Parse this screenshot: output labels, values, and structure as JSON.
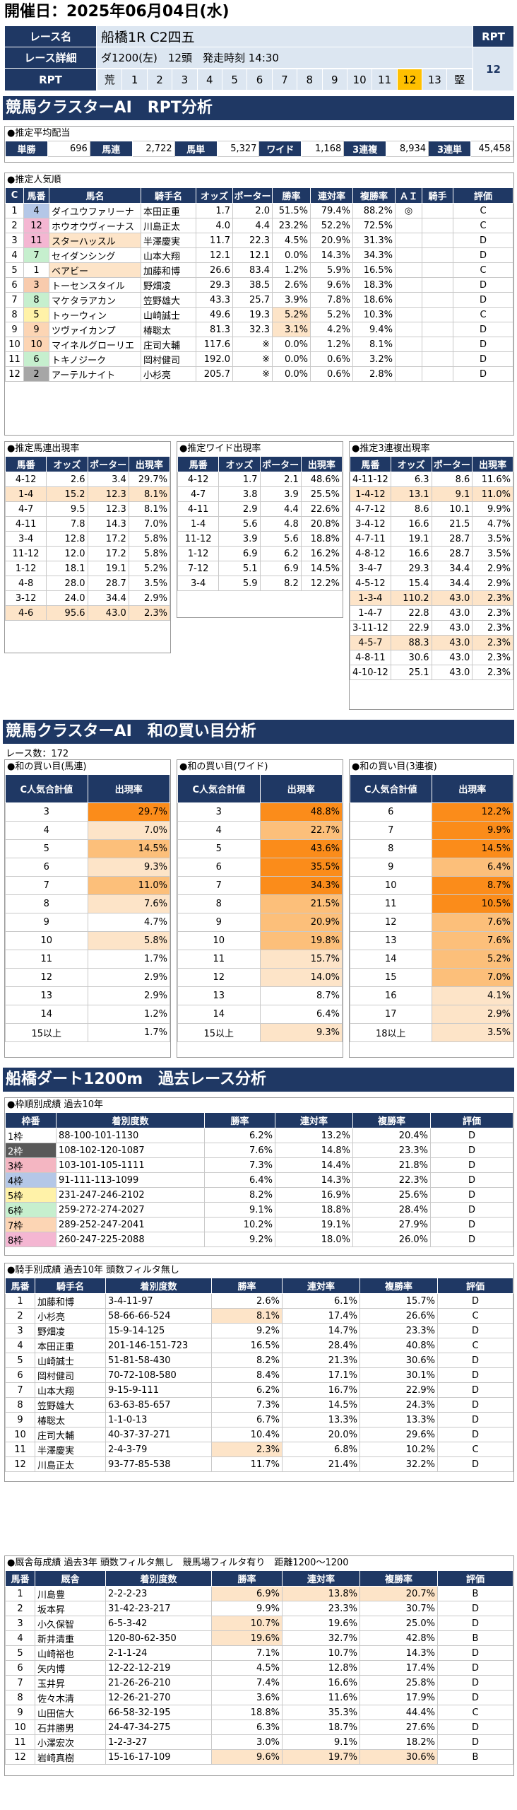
{
  "header": {
    "date": "開催日：2025年06月04日(水)"
  },
  "race": {
    "name_label": "レース名",
    "name": "船橋1R C2四五",
    "detail_label": "レース詳細",
    "detail": "ダ1200(左)　12頭　発走時刻 14:30",
    "rpt_label": "RPT",
    "rpt_value": "12",
    "rpt_scale": [
      "荒",
      "1",
      "2",
      "3",
      "4",
      "5",
      "6",
      "7",
      "8",
      "9",
      "10",
      "11",
      "12",
      "13",
      "堅"
    ],
    "rpt_selected": 12
  },
  "sec1": {
    "title": "競馬クラスターAI　RPT分析"
  },
  "payout": {
    "title": "●推定平均配当",
    "items": [
      {
        "label": "単勝",
        "value": "696"
      },
      {
        "label": "馬連",
        "value": "2,722"
      },
      {
        "label": "馬単",
        "value": "5,327"
      },
      {
        "label": "ワイド",
        "value": "1,168"
      },
      {
        "label": "3連複",
        "value": "8,934"
      },
      {
        "label": "3連単",
        "value": "45,458"
      }
    ]
  },
  "popular": {
    "title": "●推定人気順",
    "headers": [
      "C",
      "馬番",
      "馬名",
      "騎手名",
      "オッズ",
      "ポーター",
      "勝率",
      "連対率",
      "複勝率",
      "ＡＩ",
      "騎手",
      "評価"
    ],
    "rows": [
      [
        "1",
        "4",
        "ダイユウファリーナ",
        "本田正重",
        "1.7",
        "2.0",
        "51.5%",
        "79.4%",
        "88.2%",
        "◎",
        "",
        "C"
      ],
      [
        "2",
        "12",
        "ホウオウヴィーナス",
        "川島正太",
        "4.0",
        "4.4",
        "23.2%",
        "52.2%",
        "72.5%",
        "",
        "",
        "C"
      ],
      [
        "3",
        "11",
        "スターハッスル",
        "半澤慶実",
        "11.7",
        "22.3",
        "4.5%",
        "20.9%",
        "31.3%",
        "",
        "",
        "D"
      ],
      [
        "4",
        "7",
        "セイダンシング",
        "山本大翔",
        "12.1",
        "12.1",
        "0.0%",
        "14.3%",
        "34.3%",
        "",
        "",
        "D"
      ],
      [
        "5",
        "1",
        "ベアビー",
        "加藤和博",
        "26.6",
        "83.4",
        "1.2%",
        "5.9%",
        "16.5%",
        "",
        "",
        "C"
      ],
      [
        "6",
        "3",
        "トーセンスタイル",
        "野畑凌",
        "29.3",
        "38.5",
        "2.6%",
        "9.6%",
        "18.3%",
        "",
        "",
        "D"
      ],
      [
        "7",
        "8",
        "マケタラアカン",
        "笠野雄大",
        "43.3",
        "25.7",
        "3.9%",
        "7.8%",
        "18.6%",
        "",
        "",
        "D"
      ],
      [
        "8",
        "5",
        "トゥーウィン",
        "山崎誠士",
        "49.6",
        "19.3",
        "5.2%",
        "5.2%",
        "10.3%",
        "",
        "",
        "C"
      ],
      [
        "9",
        "9",
        "ツヴァイカンプ",
        "椿聡太",
        "81.3",
        "32.3",
        "3.1%",
        "4.2%",
        "9.4%",
        "",
        "",
        "D"
      ],
      [
        "10",
        "10",
        "マイネルグローリエ",
        "庄司大輔",
        "117.6",
        "※",
        "0.0%",
        "1.2%",
        "8.1%",
        "",
        "",
        "D"
      ],
      [
        "11",
        "6",
        "トキノジーク",
        "岡村健司",
        "192.0",
        "※",
        "0.0%",
        "0.6%",
        "3.2%",
        "",
        "",
        "D"
      ],
      [
        "12",
        "2",
        "アーテルナイト",
        "小杉亮",
        "205.7",
        "※",
        "0.0%",
        "0.6%",
        "2.8%",
        "",
        "",
        "D"
      ]
    ]
  },
  "umaren": {
    "title": "●推定馬連出現率",
    "headers": [
      "馬番",
      "オッズ",
      "ポーター",
      "出現率"
    ],
    "rows": [
      [
        "4-12",
        "2.6",
        "3.4",
        "29.7%"
      ],
      [
        "1-4",
        "15.2",
        "12.3",
        "8.1%"
      ],
      [
        "4-7",
        "9.5",
        "12.3",
        "8.1%"
      ],
      [
        "4-11",
        "7.8",
        "14.3",
        "7.0%"
      ],
      [
        "3-4",
        "12.8",
        "17.2",
        "5.8%"
      ],
      [
        "11-12",
        "12.0",
        "17.2",
        "5.8%"
      ],
      [
        "1-12",
        "18.1",
        "19.1",
        "5.2%"
      ],
      [
        "4-8",
        "28.0",
        "28.7",
        "3.5%"
      ],
      [
        "3-12",
        "24.0",
        "34.4",
        "2.9%"
      ],
      [
        "4-6",
        "95.6",
        "43.0",
        "2.3%"
      ]
    ]
  },
  "wide": {
    "title": "●推定ワイド出現率",
    "headers": [
      "馬番",
      "オッズ",
      "ポーター",
      "出現率"
    ],
    "rows": [
      [
        "4-12",
        "1.7",
        "2.1",
        "48.6%"
      ],
      [
        "4-7",
        "3.8",
        "3.9",
        "25.5%"
      ],
      [
        "4-11",
        "2.9",
        "4.4",
        "22.6%"
      ],
      [
        "1-4",
        "5.6",
        "4.8",
        "20.8%"
      ],
      [
        "11-12",
        "3.9",
        "5.6",
        "18.8%"
      ],
      [
        "1-12",
        "6.9",
        "6.2",
        "16.2%"
      ],
      [
        "7-12",
        "5.1",
        "6.9",
        "14.5%"
      ],
      [
        "3-4",
        "5.9",
        "8.2",
        "12.2%"
      ]
    ]
  },
  "sanrenpuku": {
    "title": "●推定3連複出現率",
    "headers": [
      "馬番",
      "オッズ",
      "ポーター",
      "出現率"
    ],
    "rows": [
      [
        "4-11-12",
        "6.3",
        "8.6",
        "11.6%"
      ],
      [
        "1-4-12",
        "13.1",
        "9.1",
        "11.0%"
      ],
      [
        "4-7-12",
        "8.6",
        "10.1",
        "9.9%"
      ],
      [
        "3-4-12",
        "16.6",
        "21.5",
        "4.7%"
      ],
      [
        "4-7-11",
        "19.1",
        "28.7",
        "3.5%"
      ],
      [
        "4-8-12",
        "16.6",
        "28.7",
        "3.5%"
      ],
      [
        "3-4-7",
        "29.3",
        "34.4",
        "2.9%"
      ],
      [
        "4-5-12",
        "15.4",
        "34.4",
        "2.9%"
      ],
      [
        "1-3-4",
        "110.2",
        "43.0",
        "2.3%"
      ],
      [
        "1-4-7",
        "22.8",
        "43.0",
        "2.3%"
      ],
      [
        "3-11-12",
        "22.9",
        "43.0",
        "2.3%"
      ],
      [
        "4-5-7",
        "88.3",
        "43.0",
        "2.3%"
      ],
      [
        "4-8-11",
        "30.6",
        "43.0",
        "2.3%"
      ],
      [
        "4-10-12",
        "25.1",
        "43.0",
        "2.3%"
      ]
    ]
  },
  "sec2": {
    "title": "競馬クラスターAI　和の買い目分析",
    "race_count": "レース数：172"
  },
  "wa_umaren": {
    "title": "●和の買い目(馬連)",
    "headers": [
      "C人気合計値",
      "出現率"
    ],
    "rows": [
      [
        "3",
        "29.7%"
      ],
      [
        "4",
        "7.0%"
      ],
      [
        "5",
        "14.5%"
      ],
      [
        "6",
        "9.3%"
      ],
      [
        "7",
        "11.0%"
      ],
      [
        "8",
        "7.6%"
      ],
      [
        "9",
        "4.7%"
      ],
      [
        "10",
        "5.8%"
      ],
      [
        "11",
        "1.7%"
      ],
      [
        "12",
        "2.9%"
      ],
      [
        "13",
        "2.9%"
      ],
      [
        "14",
        "1.2%"
      ],
      [
        "15以上",
        "1.7%"
      ]
    ]
  },
  "wa_wide": {
    "title": "●和の買い目(ワイド)",
    "headers": [
      "C人気合計値",
      "出現率"
    ],
    "rows": [
      [
        "3",
        "48.8%"
      ],
      [
        "4",
        "22.7%"
      ],
      [
        "5",
        "43.6%"
      ],
      [
        "6",
        "35.5%"
      ],
      [
        "7",
        "34.3%"
      ],
      [
        "8",
        "21.5%"
      ],
      [
        "9",
        "20.9%"
      ],
      [
        "10",
        "19.8%"
      ],
      [
        "11",
        "15.7%"
      ],
      [
        "12",
        "14.0%"
      ],
      [
        "13",
        "8.7%"
      ],
      [
        "14",
        "6.4%"
      ],
      [
        "15以上",
        "9.3%"
      ]
    ]
  },
  "wa_3renpuku": {
    "title": "●和の買い目(3連複)",
    "headers": [
      "C人気合計値",
      "出現率"
    ],
    "rows": [
      [
        "6",
        "12.2%"
      ],
      [
        "7",
        "9.9%"
      ],
      [
        "8",
        "14.5%"
      ],
      [
        "9",
        "6.4%"
      ],
      [
        "10",
        "8.7%"
      ],
      [
        "11",
        "10.5%"
      ],
      [
        "12",
        "7.6%"
      ],
      [
        "13",
        "7.6%"
      ],
      [
        "14",
        "5.2%"
      ],
      [
        "15",
        "7.0%"
      ],
      [
        "16",
        "4.1%"
      ],
      [
        "17",
        "2.9%"
      ],
      [
        "18以上",
        "3.5%"
      ]
    ]
  },
  "sec3": {
    "title": "船橋ダート1200m　過去レース分析"
  },
  "waku": {
    "title": "●枠順別成績 過去10年",
    "headers": [
      "枠番",
      "着別度数",
      "勝率",
      "連対率",
      "複勝率",
      "評価"
    ],
    "rows": [
      [
        "1枠",
        "88-100-101-1130",
        "6.2%",
        "13.2%",
        "20.4%",
        "D"
      ],
      [
        "2枠",
        "108-102-120-1087",
        "7.6%",
        "14.8%",
        "23.3%",
        "D"
      ],
      [
        "3枠",
        "103-101-105-1111",
        "7.3%",
        "14.4%",
        "21.8%",
        "D"
      ],
      [
        "4枠",
        "91-111-113-1099",
        "6.4%",
        "14.3%",
        "22.3%",
        "D"
      ],
      [
        "5枠",
        "231-247-246-2102",
        "8.2%",
        "16.9%",
        "25.6%",
        "D"
      ],
      [
        "6枠",
        "259-272-274-2027",
        "9.1%",
        "18.8%",
        "28.4%",
        "D"
      ],
      [
        "7枠",
        "289-252-247-2041",
        "10.2%",
        "19.1%",
        "27.9%",
        "D"
      ],
      [
        "8枠",
        "260-247-225-2088",
        "9.2%",
        "18.0%",
        "26.0%",
        "D"
      ]
    ]
  },
  "jockey": {
    "title": "●騎手別成績 過去10年 頭数フィルタ無し",
    "headers": [
      "馬番",
      "騎手名",
      "着別度数",
      "勝率",
      "連対率",
      "複勝率",
      "評価"
    ],
    "rows": [
      [
        "1",
        "加藤和博",
        "3-4-11-97",
        "2.6%",
        "6.1%",
        "15.7%",
        "D"
      ],
      [
        "2",
        "小杉亮",
        "58-66-66-524",
        "8.1%",
        "17.4%",
        "26.6%",
        "C"
      ],
      [
        "3",
        "野畑凌",
        "15-9-14-125",
        "9.2%",
        "14.7%",
        "23.3%",
        "D"
      ],
      [
        "4",
        "本田正重",
        "201-146-151-723",
        "16.5%",
        "28.4%",
        "40.8%",
        "C"
      ],
      [
        "5",
        "山崎誠士",
        "51-81-58-430",
        "8.2%",
        "21.3%",
        "30.6%",
        "D"
      ],
      [
        "6",
        "岡村健司",
        "70-72-108-580",
        "8.4%",
        "17.1%",
        "30.1%",
        "D"
      ],
      [
        "7",
        "山本大翔",
        "9-15-9-111",
        "6.2%",
        "16.7%",
        "22.9%",
        "D"
      ],
      [
        "8",
        "笠野雄大",
        "63-63-85-657",
        "7.3%",
        "14.5%",
        "24.3%",
        "D"
      ],
      [
        "9",
        "椿聡太",
        "1-1-0-13",
        "6.7%",
        "13.3%",
        "13.3%",
        "D"
      ],
      [
        "10",
        "庄司大輔",
        "40-37-37-271",
        "10.4%",
        "20.0%",
        "29.6%",
        "D"
      ],
      [
        "11",
        "半澤慶実",
        "2-4-3-79",
        "2.3%",
        "6.8%",
        "10.2%",
        "C"
      ],
      [
        "12",
        "川島正太",
        "93-77-85-538",
        "11.7%",
        "21.4%",
        "32.2%",
        "D"
      ]
    ]
  },
  "trainer": {
    "title": "●厩舎毎成績 過去3年 頭数フィルタ無し　競馬場フィルタ有り　距離1200～1200",
    "headers": [
      "馬番",
      "厩舎",
      "着別度数",
      "勝率",
      "連対率",
      "複勝率",
      "評価"
    ],
    "rows": [
      [
        "1",
        "川島豊",
        "2-2-2-23",
        "6.9%",
        "13.8%",
        "20.7%",
        "B"
      ],
      [
        "2",
        "坂本昇",
        "31-42-23-217",
        "9.9%",
        "23.3%",
        "30.7%",
        "D"
      ],
      [
        "3",
        "小久保智",
        "6-5-3-42",
        "10.7%",
        "19.6%",
        "25.0%",
        "D"
      ],
      [
        "4",
        "新井清重",
        "120-80-62-350",
        "19.6%",
        "32.7%",
        "42.8%",
        "B"
      ],
      [
        "5",
        "山崎裕也",
        "2-1-1-24",
        "7.1%",
        "10.7%",
        "14.3%",
        "D"
      ],
      [
        "6",
        "矢内博",
        "12-22-12-219",
        "4.5%",
        "12.8%",
        "17.4%",
        "D"
      ],
      [
        "7",
        "玉井昇",
        "21-26-26-210",
        "7.4%",
        "16.6%",
        "25.8%",
        "D"
      ],
      [
        "8",
        "佐々木清",
        "12-26-21-270",
        "3.6%",
        "11.6%",
        "17.9%",
        "D"
      ],
      [
        "9",
        "山田信大",
        "66-58-32-195",
        "18.8%",
        "35.3%",
        "44.4%",
        "C"
      ],
      [
        "10",
        "石井勝男",
        "24-47-34-275",
        "6.3%",
        "18.7%",
        "27.6%",
        "D"
      ],
      [
        "11",
        "小澤宏次",
        "1-2-3-27",
        "3.0%",
        "9.1%",
        "18.2%",
        "D"
      ],
      [
        "12",
        "岩崎真樹",
        "15-16-17-109",
        "9.6%",
        "19.7%",
        "30.6%",
        "B"
      ]
    ]
  },
  "colors": {
    "navy": "#1f3864",
    "orange_strong": "#fb8c1a",
    "orange_mid": "#fcbf7a",
    "orange_light": "#fde4c8",
    "pink": "#f8cbad",
    "selected_rpt": "#ffc000"
  }
}
